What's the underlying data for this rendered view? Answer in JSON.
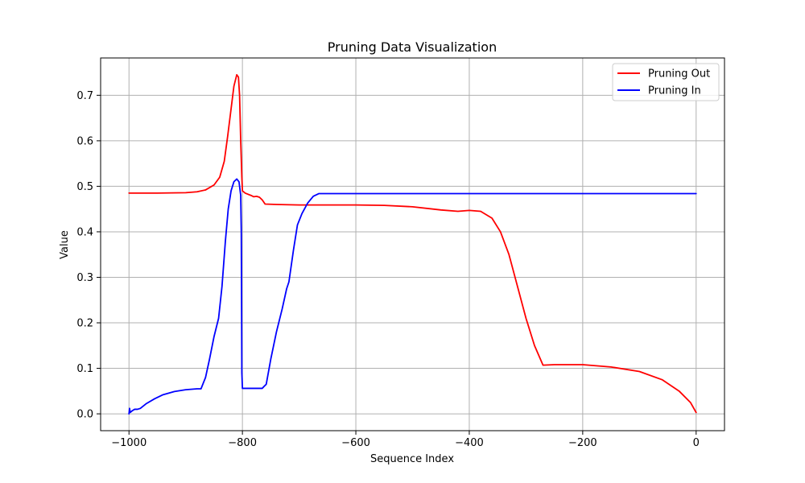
{
  "chart_data": {
    "type": "line",
    "title": "Pruning Data Visualization",
    "xlabel": "Sequence Index",
    "ylabel": "Value",
    "xlim": [
      -1050,
      50
    ],
    "ylim": [
      -0.037,
      0.782
    ],
    "xticks": [
      -1000,
      -800,
      -600,
      -400,
      -200,
      0
    ],
    "xtick_labels": [
      "−1000",
      "−800",
      "−600",
      "−400",
      "−200",
      "0"
    ],
    "yticks": [
      0.0,
      0.1,
      0.2,
      0.3,
      0.4,
      0.5,
      0.6,
      0.7
    ],
    "ytick_labels": [
      "0.0",
      "0.1",
      "0.2",
      "0.3",
      "0.4",
      "0.5",
      "0.6",
      "0.7"
    ],
    "grid": true,
    "legend_position": "top-right",
    "series": [
      {
        "name": "Pruning Out",
        "color": "#ff0000",
        "points": [
          [
            -1000,
            0.485
          ],
          [
            -950,
            0.485
          ],
          [
            -900,
            0.486
          ],
          [
            -880,
            0.488
          ],
          [
            -865,
            0.492
          ],
          [
            -850,
            0.503
          ],
          [
            -840,
            0.52
          ],
          [
            -832,
            0.555
          ],
          [
            -826,
            0.61
          ],
          [
            -820,
            0.67
          ],
          [
            -815,
            0.72
          ],
          [
            -810,
            0.745
          ],
          [
            -807,
            0.74
          ],
          [
            -805,
            0.7
          ],
          [
            -803,
            0.6
          ],
          [
            -801,
            0.52
          ],
          [
            -800,
            0.49
          ],
          [
            -795,
            0.485
          ],
          [
            -785,
            0.48
          ],
          [
            -780,
            0.477
          ],
          [
            -775,
            0.478
          ],
          [
            -770,
            0.476
          ],
          [
            -765,
            0.47
          ],
          [
            -760,
            0.461
          ],
          [
            -740,
            0.46
          ],
          [
            -700,
            0.459
          ],
          [
            -600,
            0.459
          ],
          [
            -550,
            0.458
          ],
          [
            -500,
            0.455
          ],
          [
            -450,
            0.448
          ],
          [
            -420,
            0.445
          ],
          [
            -400,
            0.447
          ],
          [
            -380,
            0.445
          ],
          [
            -360,
            0.43
          ],
          [
            -345,
            0.4
          ],
          [
            -330,
            0.35
          ],
          [
            -315,
            0.28
          ],
          [
            -300,
            0.21
          ],
          [
            -285,
            0.15
          ],
          [
            -270,
            0.107
          ],
          [
            -250,
            0.108
          ],
          [
            -200,
            0.108
          ],
          [
            -150,
            0.103
          ],
          [
            -100,
            0.093
          ],
          [
            -60,
            0.075
          ],
          [
            -30,
            0.05
          ],
          [
            -10,
            0.025
          ],
          [
            0,
            0.003
          ]
        ]
      },
      {
        "name": "Pruning In",
        "color": "#0000ff",
        "points": [
          [
            -1000,
            0.0
          ],
          [
            -999,
            0.012
          ],
          [
            -998,
            0.003
          ],
          [
            -994,
            0.007
          ],
          [
            -990,
            0.01
          ],
          [
            -985,
            0.01
          ],
          [
            -980,
            0.012
          ],
          [
            -970,
            0.022
          ],
          [
            -955,
            0.033
          ],
          [
            -940,
            0.042
          ],
          [
            -920,
            0.049
          ],
          [
            -900,
            0.053
          ],
          [
            -880,
            0.055
          ],
          [
            -873,
            0.055
          ],
          [
            -865,
            0.08
          ],
          [
            -858,
            0.12
          ],
          [
            -850,
            0.17
          ],
          [
            -842,
            0.21
          ],
          [
            -836,
            0.28
          ],
          [
            -830,
            0.38
          ],
          [
            -825,
            0.45
          ],
          [
            -820,
            0.49
          ],
          [
            -815,
            0.51
          ],
          [
            -810,
            0.516
          ],
          [
            -806,
            0.51
          ],
          [
            -803,
            0.48
          ],
          [
            -802,
            0.4
          ],
          [
            -801.5,
            0.25
          ],
          [
            -801,
            0.09
          ],
          [
            -800,
            0.056
          ],
          [
            -790,
            0.056
          ],
          [
            -765,
            0.056
          ],
          [
            -762,
            0.06
          ],
          [
            -758,
            0.065
          ],
          [
            -750,
            0.12
          ],
          [
            -740,
            0.18
          ],
          [
            -730,
            0.23
          ],
          [
            -722,
            0.275
          ],
          [
            -718,
            0.29
          ],
          [
            -710,
            0.36
          ],
          [
            -703,
            0.415
          ],
          [
            -695,
            0.44
          ],
          [
            -685,
            0.463
          ],
          [
            -675,
            0.478
          ],
          [
            -665,
            0.484
          ],
          [
            -640,
            0.484
          ],
          [
            -500,
            0.484
          ],
          [
            -300,
            0.484
          ],
          [
            -100,
            0.484
          ],
          [
            0,
            0.484
          ]
        ]
      }
    ]
  }
}
